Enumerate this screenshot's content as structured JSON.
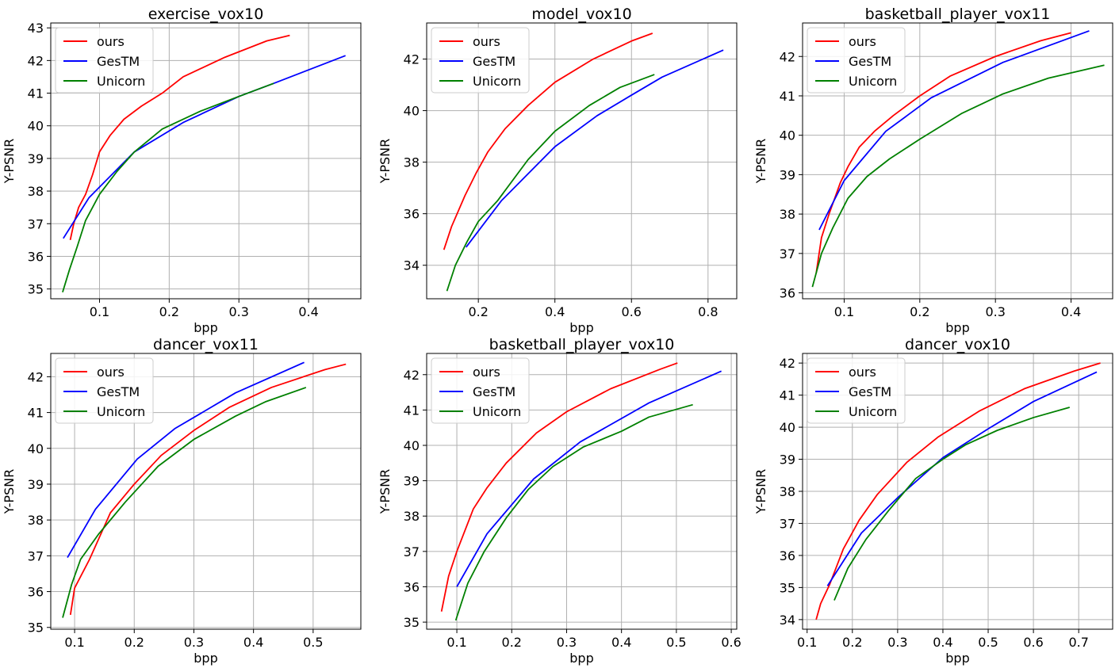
{
  "figure": {
    "background": "#ffffff"
  },
  "styles": {
    "colors": {
      "ours": "#ff0000",
      "GesTM": "#0000ff",
      "Unicorn": "#008000",
      "grid": "#b0b0b0",
      "axis": "#000000"
    }
  },
  "chart_data": [
    {
      "type": "line",
      "title": "exercise_vox10",
      "xlabel": "bpp",
      "ylabel": "Y-PSNR",
      "xlim": [
        0.03,
        0.475
      ],
      "ylim": [
        34.7,
        43.15
      ],
      "xticks": [
        0.1,
        0.2,
        0.3,
        0.4
      ],
      "xtick_labels": [
        "0.1",
        "0.2",
        "0.3",
        "0.4"
      ],
      "yticks": [
        35,
        36,
        37,
        38,
        39,
        40,
        41,
        42,
        43
      ],
      "ytick_labels": [
        "35",
        "36",
        "37",
        "38",
        "39",
        "40",
        "41",
        "42",
        "43"
      ],
      "grid": true,
      "legend": "upper-left",
      "series": [
        {
          "name": "ours",
          "x": [
            0.058,
            0.063,
            0.07,
            0.08,
            0.09,
            0.1,
            0.115,
            0.135,
            0.16,
            0.19,
            0.22,
            0.28,
            0.34,
            0.373
          ],
          "y": [
            36.5,
            37.0,
            37.5,
            37.9,
            38.5,
            39.2,
            39.7,
            40.2,
            40.6,
            41.0,
            41.5,
            42.1,
            42.6,
            42.77
          ]
        },
        {
          "name": "GesTM",
          "x": [
            0.048,
            0.085,
            0.15,
            0.22,
            0.3,
            0.35,
            0.453
          ],
          "y": [
            36.55,
            37.8,
            39.2,
            40.1,
            40.9,
            41.3,
            42.15
          ]
        },
        {
          "name": "Unicorn",
          "x": [
            0.047,
            0.057,
            0.068,
            0.08,
            0.1,
            0.125,
            0.15,
            0.19,
            0.245,
            0.3,
            0.35
          ],
          "y": [
            34.9,
            35.6,
            36.3,
            37.1,
            37.9,
            38.6,
            39.2,
            39.9,
            40.45,
            40.9,
            41.3
          ]
        }
      ]
    },
    {
      "type": "line",
      "title": "model_vox10",
      "xlabel": "bpp",
      "ylabel": "Y-PSNR",
      "xlim": [
        0.065,
        0.875
      ],
      "ylim": [
        32.7,
        43.4
      ],
      "xticks": [
        0.2,
        0.4,
        0.6,
        0.8
      ],
      "xtick_labels": [
        "0.2",
        "0.4",
        "0.6",
        "0.8"
      ],
      "yticks": [
        34,
        36,
        38,
        40,
        42
      ],
      "ytick_labels": [
        "34",
        "36",
        "38",
        "40",
        "42"
      ],
      "grid": true,
      "legend": "upper-left",
      "series": [
        {
          "name": "ours",
          "x": [
            0.11,
            0.13,
            0.165,
            0.195,
            0.225,
            0.27,
            0.33,
            0.4,
            0.5,
            0.6,
            0.655
          ],
          "y": [
            34.6,
            35.5,
            36.7,
            37.6,
            38.4,
            39.3,
            40.2,
            41.1,
            42.0,
            42.7,
            43.0
          ]
        },
        {
          "name": "GesTM",
          "x": [
            0.168,
            0.26,
            0.4,
            0.51,
            0.6,
            0.68,
            0.84
          ],
          "y": [
            34.7,
            36.5,
            38.6,
            39.8,
            40.6,
            41.3,
            42.35
          ]
        },
        {
          "name": "Unicorn",
          "x": [
            0.118,
            0.14,
            0.17,
            0.2,
            0.25,
            0.33,
            0.4,
            0.49,
            0.57,
            0.66
          ],
          "y": [
            33.0,
            34.0,
            34.9,
            35.7,
            36.5,
            38.1,
            39.2,
            40.2,
            40.9,
            41.4
          ]
        }
      ]
    },
    {
      "type": "line",
      "title": "basketball_player_vox11",
      "xlabel": "bpp",
      "ylabel": "Y-PSNR",
      "xlim": [
        0.045,
        0.455
      ],
      "ylim": [
        35.85,
        42.85
      ],
      "xticks": [
        0.1,
        0.2,
        0.3,
        0.4
      ],
      "xtick_labels": [
        "0.1",
        "0.2",
        "0.3",
        "0.4"
      ],
      "yticks": [
        36,
        37,
        38,
        39,
        40,
        41,
        42
      ],
      "ytick_labels": [
        "36",
        "37",
        "38",
        "39",
        "40",
        "41",
        "42"
      ],
      "grid": true,
      "legend": "upper-left",
      "series": [
        {
          "name": "ours",
          "x": [
            0.063,
            0.07,
            0.08,
            0.095,
            0.105,
            0.12,
            0.14,
            0.165,
            0.2,
            0.24,
            0.3,
            0.36,
            0.4
          ],
          "y": [
            36.5,
            37.4,
            38.0,
            38.8,
            39.2,
            39.7,
            40.1,
            40.5,
            41.0,
            41.5,
            42.0,
            42.4,
            42.6
          ]
        },
        {
          "name": "GesTM",
          "x": [
            0.067,
            0.1,
            0.155,
            0.215,
            0.31,
            0.424
          ],
          "y": [
            37.6,
            38.85,
            40.1,
            40.95,
            41.85,
            42.65
          ]
        },
        {
          "name": "Unicorn",
          "x": [
            0.058,
            0.07,
            0.085,
            0.105,
            0.13,
            0.16,
            0.2,
            0.255,
            0.31,
            0.37,
            0.444
          ],
          "y": [
            36.15,
            37.0,
            37.65,
            38.4,
            38.95,
            39.4,
            39.9,
            40.55,
            41.05,
            41.45,
            41.78
          ]
        }
      ]
    },
    {
      "type": "line",
      "title": "dancer_vox11",
      "xlabel": "bpp",
      "ylabel": "Y-PSNR",
      "xlim": [
        0.06,
        0.58
      ],
      "ylim": [
        34.95,
        42.65
      ],
      "xticks": [
        0.1,
        0.2,
        0.3,
        0.4,
        0.5
      ],
      "xtick_labels": [
        "0.1",
        "0.2",
        "0.3",
        "0.4",
        "0.5"
      ],
      "yticks": [
        35,
        36,
        37,
        38,
        39,
        40,
        41,
        42
      ],
      "ytick_labels": [
        "35",
        "36",
        "37",
        "38",
        "39",
        "40",
        "41",
        "42"
      ],
      "grid": true,
      "legend": "upper-left",
      "series": [
        {
          "name": "ours",
          "x": [
            0.093,
            0.1,
            0.125,
            0.16,
            0.2,
            0.245,
            0.3,
            0.36,
            0.43,
            0.52,
            0.555
          ],
          "y": [
            35.35,
            36.1,
            36.9,
            38.2,
            39.0,
            39.8,
            40.5,
            41.15,
            41.7,
            42.2,
            42.35
          ]
        },
        {
          "name": "GesTM",
          "x": [
            0.088,
            0.135,
            0.205,
            0.268,
            0.37,
            0.485
          ],
          "y": [
            36.95,
            38.3,
            39.7,
            40.55,
            41.55,
            42.4
          ]
        },
        {
          "name": "Unicorn",
          "x": [
            0.08,
            0.095,
            0.11,
            0.14,
            0.185,
            0.24,
            0.3,
            0.37,
            0.42,
            0.488
          ],
          "y": [
            35.27,
            36.2,
            36.9,
            37.6,
            38.5,
            39.5,
            40.25,
            40.9,
            41.3,
            41.7
          ]
        }
      ]
    },
    {
      "type": "line",
      "title": "basketball_player_vox10",
      "xlabel": "bpp",
      "ylabel": "Y-PSNR",
      "xlim": [
        0.045,
        0.61
      ],
      "ylim": [
        34.8,
        42.6
      ],
      "xticks": [
        0.1,
        0.2,
        0.3,
        0.4,
        0.5,
        0.6
      ],
      "xtick_labels": [
        "0.1",
        "0.2",
        "0.3",
        "0.4",
        "0.5",
        "0.6"
      ],
      "yticks": [
        35,
        36,
        37,
        38,
        39,
        40,
        41,
        42
      ],
      "ytick_labels": [
        "35",
        "36",
        "37",
        "38",
        "39",
        "40",
        "41",
        "42"
      ],
      "grid": true,
      "legend": "upper-left",
      "series": [
        {
          "name": "ours",
          "x": [
            0.072,
            0.085,
            0.1,
            0.13,
            0.155,
            0.19,
            0.245,
            0.3,
            0.38,
            0.47,
            0.502
          ],
          "y": [
            35.3,
            36.3,
            37.0,
            38.2,
            38.8,
            39.5,
            40.35,
            40.95,
            41.6,
            42.15,
            42.33
          ]
        },
        {
          "name": "GesTM",
          "x": [
            0.1,
            0.155,
            0.24,
            0.325,
            0.45,
            0.582
          ],
          "y": [
            36.0,
            37.5,
            39.05,
            40.1,
            41.2,
            42.1
          ]
        },
        {
          "name": "Unicorn",
          "x": [
            0.098,
            0.12,
            0.15,
            0.19,
            0.23,
            0.275,
            0.33,
            0.4,
            0.45,
            0.53
          ],
          "y": [
            35.05,
            36.1,
            37.0,
            37.95,
            38.75,
            39.4,
            39.95,
            40.4,
            40.8,
            41.15
          ]
        }
      ]
    },
    {
      "type": "line",
      "title": "dancer_vox10",
      "xlabel": "bpp",
      "ylabel": "Y-PSNR",
      "xlim": [
        0.09,
        0.775
      ],
      "ylim": [
        33.7,
        42.3
      ],
      "xticks": [
        0.1,
        0.2,
        0.3,
        0.4,
        0.5,
        0.6,
        0.7
      ],
      "xtick_labels": [
        "0.1",
        "0.2",
        "0.3",
        "0.4",
        "0.5",
        "0.6",
        "0.7"
      ],
      "yticks": [
        34,
        35,
        36,
        37,
        38,
        39,
        40,
        41,
        42
      ],
      "ytick_labels": [
        "34",
        "35",
        "36",
        "37",
        "38",
        "39",
        "40",
        "41",
        "42"
      ],
      "grid": true,
      "legend": "upper-left",
      "series": [
        {
          "name": "ours",
          "x": [
            0.12,
            0.13,
            0.15,
            0.18,
            0.215,
            0.255,
            0.32,
            0.39,
            0.48,
            0.58,
            0.69,
            0.748
          ],
          "y": [
            34.0,
            34.5,
            35.1,
            36.2,
            37.1,
            37.9,
            38.9,
            39.7,
            40.5,
            41.2,
            41.75,
            42.0
          ]
        },
        {
          "name": "GesTM",
          "x": [
            0.145,
            0.22,
            0.3,
            0.4,
            0.5,
            0.6,
            0.74
          ],
          "y": [
            35.05,
            36.7,
            37.8,
            39.05,
            39.95,
            40.8,
            41.72
          ]
        },
        {
          "name": "Unicorn",
          "x": [
            0.16,
            0.19,
            0.23,
            0.28,
            0.34,
            0.4,
            0.45,
            0.52,
            0.6,
            0.68
          ],
          "y": [
            34.6,
            35.6,
            36.5,
            37.4,
            38.4,
            39.0,
            39.45,
            39.9,
            40.3,
            40.62
          ]
        }
      ]
    }
  ]
}
